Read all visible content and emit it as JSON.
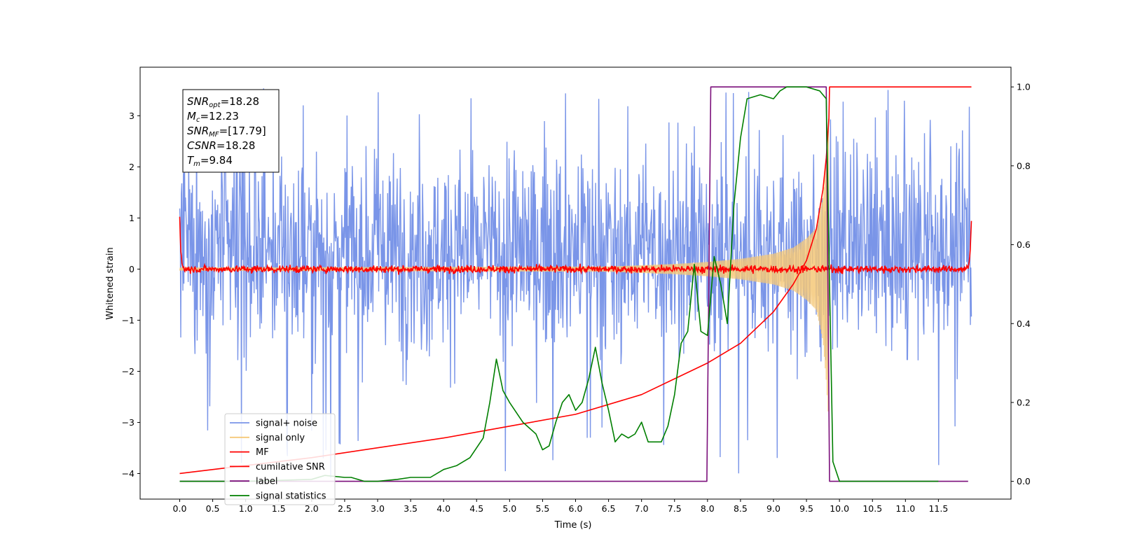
{
  "chart_data": {
    "type": "line",
    "xlabel": "Time (s)",
    "ylabel": "Whitened strain",
    "xlim": [
      -0.6,
      12.6
    ],
    "ylim": [
      -4.5,
      3.95
    ],
    "y2lim": [
      -0.045,
      1.05
    ],
    "xticks": [
      0.0,
      0.5,
      1.0,
      1.5,
      2.0,
      2.5,
      3.0,
      3.5,
      4.0,
      4.5,
      5.0,
      5.5,
      6.0,
      6.5,
      7.0,
      7.5,
      8.0,
      8.5,
      9.0,
      9.5,
      10.0,
      10.5,
      11.0,
      11.5
    ],
    "xtick_labels": [
      "0.0",
      "0.5",
      "1.0",
      "1.5",
      "2.0",
      "2.5",
      "3.0",
      "3.5",
      "4.0",
      "4.5",
      "5.0",
      "5.5",
      "6.0",
      "6.5",
      "7.0",
      "7.5",
      "8.0",
      "8.5",
      "9.0",
      "9.5",
      "10.0",
      "10.5",
      "11.0",
      "11.5"
    ],
    "yticks": [
      -4,
      -3,
      -2,
      -1,
      0,
      1,
      2,
      3
    ],
    "ytick_labels": [
      "−4",
      "−3",
      "−2",
      "−1",
      "0",
      "1",
      "2",
      "3"
    ],
    "y2ticks": [
      0.0,
      0.2,
      0.4,
      0.6,
      0.8,
      1.0
    ],
    "y2tick_labels": [
      "0.0",
      "0.2",
      "0.4",
      "0.6",
      "0.8",
      "1.0"
    ],
    "legend_position": "lower-left",
    "grid": false,
    "annotation_lines": [
      {
        "sym": "SNR",
        "sub": "opt",
        "val": "=18.28"
      },
      {
        "sym": "M",
        "sub": "c",
        "val": "=12.23"
      },
      {
        "sym": "SNR",
        "sub": "MF",
        "val": "=[17.79]"
      },
      {
        "sym": "CSNR",
        "sub": "",
        "val": "=18.28"
      },
      {
        "sym": "T",
        "sub": "m",
        "val": "=9.84"
      }
    ],
    "series": [
      {
        "name": "signal+ noise",
        "color": "#7a95e8",
        "axis": "left",
        "description": "whitened noise plus chirp, roughly uniform amplitude",
        "x_range": [
          0.0,
          12.0
        ],
        "typical_band": [
          -1.5,
          2.2
        ],
        "extreme_range": [
          -4.1,
          3.6
        ]
      },
      {
        "name": "signal only",
        "color": "#f5c878",
        "axis": "left",
        "description": "chirp growing in amplitude until merger",
        "x": [
          0.0,
          6.5,
          7.5,
          8.0,
          8.5,
          9.0,
          9.3,
          9.5,
          9.65,
          9.75,
          9.8,
          9.84
        ],
        "envelope": [
          0.03,
          0.05,
          0.1,
          0.14,
          0.2,
          0.3,
          0.42,
          0.6,
          0.8,
          1.4,
          2.2,
          3.1
        ]
      },
      {
        "name": "MF",
        "color": "#ff0000",
        "axis": "left",
        "description": "matched-filter output near zero with small fluctuations",
        "x": [
          0.0,
          0.02,
          0.05,
          11.95,
          11.98,
          12.0
        ],
        "y": [
          1.0,
          0.3,
          0.0,
          0.0,
          0.3,
          0.95
        ],
        "noise_amplitude": 0.05
      },
      {
        "name": "cumilative SNR",
        "color": "#ff0000",
        "axis": "right",
        "x": [
          0.0,
          1.0,
          2.0,
          3.0,
          4.0,
          5.0,
          6.0,
          7.0,
          7.5,
          8.0,
          8.5,
          9.0,
          9.3,
          9.5,
          9.65,
          9.75,
          9.8,
          9.84,
          9.85,
          12.0
        ],
        "y": [
          0.02,
          0.04,
          0.06,
          0.085,
          0.11,
          0.14,
          0.17,
          0.22,
          0.26,
          0.3,
          0.35,
          0.43,
          0.5,
          0.56,
          0.64,
          0.74,
          0.82,
          0.92,
          1.0,
          1.0
        ]
      },
      {
        "name": "label",
        "color": "#7b0f7b",
        "axis": "right",
        "x": [
          0.0,
          7.99,
          8.05,
          9.8,
          9.85,
          11.95
        ],
        "y": [
          0.0,
          0.0,
          1.0,
          1.0,
          0.0,
          0.0
        ]
      },
      {
        "name": "signal statistics",
        "color": "#007f00",
        "axis": "right",
        "x": [
          0.0,
          1.0,
          2.0,
          2.2,
          2.5,
          2.6,
          2.8,
          3.0,
          3.3,
          3.5,
          3.8,
          4.0,
          4.2,
          4.4,
          4.6,
          4.7,
          4.8,
          4.9,
          5.0,
          5.2,
          5.4,
          5.5,
          5.6,
          5.7,
          5.8,
          5.9,
          6.0,
          6.1,
          6.2,
          6.3,
          6.4,
          6.5,
          6.6,
          6.7,
          6.8,
          6.9,
          7.0,
          7.1,
          7.3,
          7.4,
          7.5,
          7.6,
          7.7,
          7.8,
          7.9,
          8.0,
          8.1,
          8.2,
          8.3,
          8.4,
          8.5,
          8.6,
          8.8,
          9.0,
          9.1,
          9.2,
          9.5,
          9.7,
          9.8,
          9.85,
          9.9,
          10.0,
          11.5
        ],
        "y": [
          0.0,
          0.0,
          0.005,
          0.015,
          0.01,
          0.01,
          0.0,
          0.0,
          0.005,
          0.01,
          0.01,
          0.03,
          0.04,
          0.06,
          0.11,
          0.2,
          0.31,
          0.23,
          0.2,
          0.15,
          0.12,
          0.08,
          0.09,
          0.15,
          0.2,
          0.22,
          0.18,
          0.2,
          0.26,
          0.34,
          0.25,
          0.18,
          0.1,
          0.12,
          0.11,
          0.12,
          0.15,
          0.1,
          0.1,
          0.14,
          0.22,
          0.35,
          0.38,
          0.55,
          0.38,
          0.37,
          0.57,
          0.5,
          0.4,
          0.7,
          0.87,
          0.97,
          0.98,
          0.97,
          0.99,
          1.0,
          1.0,
          0.99,
          0.97,
          0.5,
          0.05,
          0.0,
          0.0
        ]
      }
    ]
  }
}
